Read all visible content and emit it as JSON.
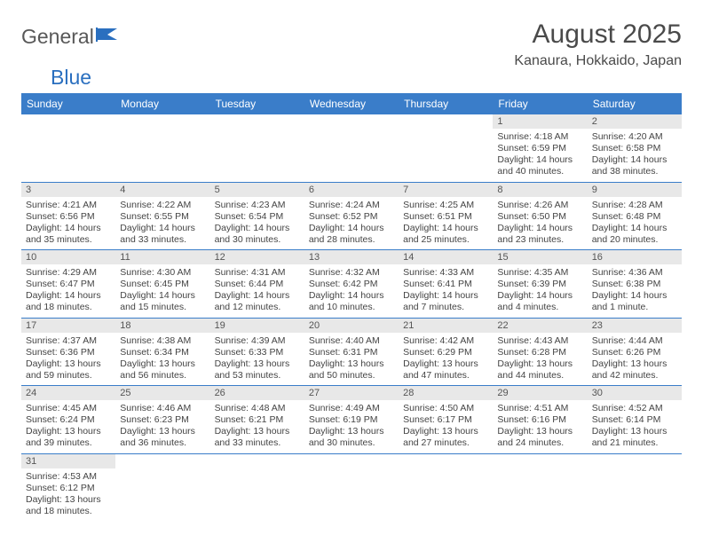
{
  "logo": {
    "text1": "General",
    "text2": "Blue"
  },
  "title": "August 2025",
  "location": "Kanaura, Hokkaido, Japan",
  "colors": {
    "header_bg": "#3a7dc9",
    "header_text": "#ffffff",
    "daynum_bg": "#e8e8e8",
    "text": "#444444",
    "rule": "#3a7dc9"
  },
  "dayHeaders": [
    "Sunday",
    "Monday",
    "Tuesday",
    "Wednesday",
    "Thursday",
    "Friday",
    "Saturday"
  ],
  "weeks": [
    [
      null,
      null,
      null,
      null,
      null,
      {
        "day": "1",
        "sunrise": "Sunrise: 4:18 AM",
        "sunset": "Sunset: 6:59 PM",
        "daylight": "Daylight: 14 hours and 40 minutes."
      },
      {
        "day": "2",
        "sunrise": "Sunrise: 4:20 AM",
        "sunset": "Sunset: 6:58 PM",
        "daylight": "Daylight: 14 hours and 38 minutes."
      }
    ],
    [
      {
        "day": "3",
        "sunrise": "Sunrise: 4:21 AM",
        "sunset": "Sunset: 6:56 PM",
        "daylight": "Daylight: 14 hours and 35 minutes."
      },
      {
        "day": "4",
        "sunrise": "Sunrise: 4:22 AM",
        "sunset": "Sunset: 6:55 PM",
        "daylight": "Daylight: 14 hours and 33 minutes."
      },
      {
        "day": "5",
        "sunrise": "Sunrise: 4:23 AM",
        "sunset": "Sunset: 6:54 PM",
        "daylight": "Daylight: 14 hours and 30 minutes."
      },
      {
        "day": "6",
        "sunrise": "Sunrise: 4:24 AM",
        "sunset": "Sunset: 6:52 PM",
        "daylight": "Daylight: 14 hours and 28 minutes."
      },
      {
        "day": "7",
        "sunrise": "Sunrise: 4:25 AM",
        "sunset": "Sunset: 6:51 PM",
        "daylight": "Daylight: 14 hours and 25 minutes."
      },
      {
        "day": "8",
        "sunrise": "Sunrise: 4:26 AM",
        "sunset": "Sunset: 6:50 PM",
        "daylight": "Daylight: 14 hours and 23 minutes."
      },
      {
        "day": "9",
        "sunrise": "Sunrise: 4:28 AM",
        "sunset": "Sunset: 6:48 PM",
        "daylight": "Daylight: 14 hours and 20 minutes."
      }
    ],
    [
      {
        "day": "10",
        "sunrise": "Sunrise: 4:29 AM",
        "sunset": "Sunset: 6:47 PM",
        "daylight": "Daylight: 14 hours and 18 minutes."
      },
      {
        "day": "11",
        "sunrise": "Sunrise: 4:30 AM",
        "sunset": "Sunset: 6:45 PM",
        "daylight": "Daylight: 14 hours and 15 minutes."
      },
      {
        "day": "12",
        "sunrise": "Sunrise: 4:31 AM",
        "sunset": "Sunset: 6:44 PM",
        "daylight": "Daylight: 14 hours and 12 minutes."
      },
      {
        "day": "13",
        "sunrise": "Sunrise: 4:32 AM",
        "sunset": "Sunset: 6:42 PM",
        "daylight": "Daylight: 14 hours and 10 minutes."
      },
      {
        "day": "14",
        "sunrise": "Sunrise: 4:33 AM",
        "sunset": "Sunset: 6:41 PM",
        "daylight": "Daylight: 14 hours and 7 minutes."
      },
      {
        "day": "15",
        "sunrise": "Sunrise: 4:35 AM",
        "sunset": "Sunset: 6:39 PM",
        "daylight": "Daylight: 14 hours and 4 minutes."
      },
      {
        "day": "16",
        "sunrise": "Sunrise: 4:36 AM",
        "sunset": "Sunset: 6:38 PM",
        "daylight": "Daylight: 14 hours and 1 minute."
      }
    ],
    [
      {
        "day": "17",
        "sunrise": "Sunrise: 4:37 AM",
        "sunset": "Sunset: 6:36 PM",
        "daylight": "Daylight: 13 hours and 59 minutes."
      },
      {
        "day": "18",
        "sunrise": "Sunrise: 4:38 AM",
        "sunset": "Sunset: 6:34 PM",
        "daylight": "Daylight: 13 hours and 56 minutes."
      },
      {
        "day": "19",
        "sunrise": "Sunrise: 4:39 AM",
        "sunset": "Sunset: 6:33 PM",
        "daylight": "Daylight: 13 hours and 53 minutes."
      },
      {
        "day": "20",
        "sunrise": "Sunrise: 4:40 AM",
        "sunset": "Sunset: 6:31 PM",
        "daylight": "Daylight: 13 hours and 50 minutes."
      },
      {
        "day": "21",
        "sunrise": "Sunrise: 4:42 AM",
        "sunset": "Sunset: 6:29 PM",
        "daylight": "Daylight: 13 hours and 47 minutes."
      },
      {
        "day": "22",
        "sunrise": "Sunrise: 4:43 AM",
        "sunset": "Sunset: 6:28 PM",
        "daylight": "Daylight: 13 hours and 44 minutes."
      },
      {
        "day": "23",
        "sunrise": "Sunrise: 4:44 AM",
        "sunset": "Sunset: 6:26 PM",
        "daylight": "Daylight: 13 hours and 42 minutes."
      }
    ],
    [
      {
        "day": "24",
        "sunrise": "Sunrise: 4:45 AM",
        "sunset": "Sunset: 6:24 PM",
        "daylight": "Daylight: 13 hours and 39 minutes."
      },
      {
        "day": "25",
        "sunrise": "Sunrise: 4:46 AM",
        "sunset": "Sunset: 6:23 PM",
        "daylight": "Daylight: 13 hours and 36 minutes."
      },
      {
        "day": "26",
        "sunrise": "Sunrise: 4:48 AM",
        "sunset": "Sunset: 6:21 PM",
        "daylight": "Daylight: 13 hours and 33 minutes."
      },
      {
        "day": "27",
        "sunrise": "Sunrise: 4:49 AM",
        "sunset": "Sunset: 6:19 PM",
        "daylight": "Daylight: 13 hours and 30 minutes."
      },
      {
        "day": "28",
        "sunrise": "Sunrise: 4:50 AM",
        "sunset": "Sunset: 6:17 PM",
        "daylight": "Daylight: 13 hours and 27 minutes."
      },
      {
        "day": "29",
        "sunrise": "Sunrise: 4:51 AM",
        "sunset": "Sunset: 6:16 PM",
        "daylight": "Daylight: 13 hours and 24 minutes."
      },
      {
        "day": "30",
        "sunrise": "Sunrise: 4:52 AM",
        "sunset": "Sunset: 6:14 PM",
        "daylight": "Daylight: 13 hours and 21 minutes."
      }
    ],
    [
      {
        "day": "31",
        "sunrise": "Sunrise: 4:53 AM",
        "sunset": "Sunset: 6:12 PM",
        "daylight": "Daylight: 13 hours and 18 minutes."
      },
      null,
      null,
      null,
      null,
      null,
      null
    ]
  ]
}
